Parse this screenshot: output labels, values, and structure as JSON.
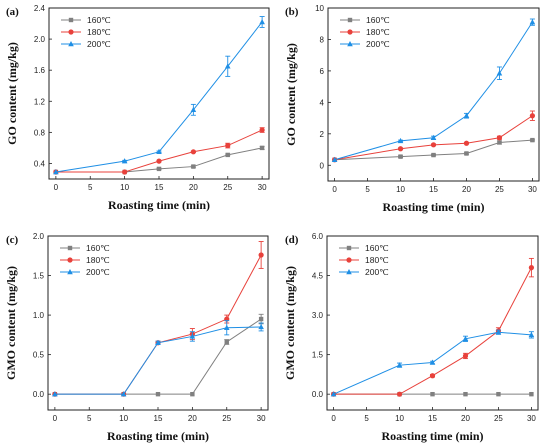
{
  "chart_data": [
    {
      "type": "line",
      "panel_label": "(a)",
      "xlabel": "Roasting time (min)",
      "ylabel": "GO content (mg/kg)",
      "x": [
        0,
        10,
        15,
        20,
        25,
        30
      ],
      "xticks": [
        0,
        5,
        10,
        15,
        20,
        25,
        30
      ],
      "xlim": [
        -1,
        31
      ],
      "ylim": [
        0.2,
        2.4
      ],
      "yticks": [
        "0.4",
        "0.8",
        "1.2",
        "1.6",
        "2.0",
        "2.4"
      ],
      "legend_position": "top-left",
      "series": [
        {
          "name": "160℃",
          "color": "#808080",
          "marker": "square",
          "values": [
            0.29,
            0.29,
            0.33,
            0.36,
            0.51,
            0.6
          ],
          "errors": [
            0,
            0,
            0.01,
            0.01,
            0.01,
            0.02
          ]
        },
        {
          "name": "180℃",
          "color": "#e8413b",
          "marker": "circle",
          "values": [
            0.29,
            0.29,
            0.43,
            0.55,
            0.63,
            0.83
          ],
          "errors": [
            0,
            0,
            0.01,
            0.01,
            0.03,
            0.03
          ]
        },
        {
          "name": "200℃",
          "color": "#1f8fe5",
          "marker": "triangle",
          "values": [
            0.29,
            0.43,
            0.55,
            1.09,
            1.65,
            2.22
          ],
          "errors": [
            0,
            0.01,
            0.01,
            0.07,
            0.13,
            0.07
          ]
        }
      ]
    },
    {
      "type": "line",
      "panel_label": "(b)",
      "xlabel": "Roasting time (min)",
      "ylabel": "GO content (mg/kg)",
      "x": [
        0,
        10,
        15,
        20,
        25,
        30
      ],
      "xticks": [
        0,
        5,
        10,
        15,
        20,
        25,
        30
      ],
      "xlim": [
        -1,
        31
      ],
      "ylim": [
        -1,
        10
      ],
      "yticks": [
        "0",
        "2",
        "4",
        "6",
        "8",
        "10"
      ],
      "legend_position": "top-left",
      "series": [
        {
          "name": "160℃",
          "color": "#808080",
          "marker": "square",
          "values": [
            0.35,
            0.55,
            0.65,
            0.75,
            1.45,
            1.6
          ],
          "errors": [
            0,
            0.05,
            0.05,
            0.05,
            0.1,
            0.05
          ]
        },
        {
          "name": "180℃",
          "color": "#e8413b",
          "marker": "circle",
          "values": [
            0.35,
            1.05,
            1.3,
            1.4,
            1.75,
            3.15
          ],
          "errors": [
            0,
            0.05,
            0.05,
            0.05,
            0.1,
            0.3
          ]
        },
        {
          "name": "200℃",
          "color": "#1f8fe5",
          "marker": "triangle",
          "values": [
            0.35,
            1.55,
            1.75,
            3.15,
            5.85,
            9.1
          ],
          "errors": [
            0,
            0.05,
            0.1,
            0.15,
            0.4,
            0.2
          ]
        }
      ]
    },
    {
      "type": "line",
      "panel_label": "(c)",
      "xlabel": "Roasting time (min)",
      "ylabel": "GMO content (mg/kg)",
      "x": [
        0,
        10,
        15,
        20,
        25,
        30
      ],
      "xticks": [
        0,
        5,
        10,
        15,
        20,
        25,
        30
      ],
      "xlim": [
        -1,
        31
      ],
      "ylim": [
        -0.2,
        2.0
      ],
      "yticks": [
        "0.0",
        "0.5",
        "1.0",
        "1.5",
        "2.0"
      ],
      "legend_position": "top-left",
      "series": [
        {
          "name": "160℃",
          "color": "#808080",
          "marker": "square",
          "values": [
            0,
            0,
            0,
            0,
            0.66,
            0.95
          ],
          "errors": [
            0,
            0,
            0,
            0,
            0.03,
            0.06
          ]
        },
        {
          "name": "180℃",
          "color": "#e8413b",
          "marker": "circle",
          "values": [
            0,
            0,
            0.65,
            0.76,
            0.95,
            1.76
          ],
          "errors": [
            0,
            0,
            0.02,
            0.07,
            0.05,
            0.17
          ]
        },
        {
          "name": "200℃",
          "color": "#1f8fe5",
          "marker": "triangle",
          "values": [
            0,
            0,
            0.65,
            0.73,
            0.84,
            0.85
          ],
          "errors": [
            0,
            0,
            0.02,
            0.06,
            0.09,
            0.05
          ]
        }
      ]
    },
    {
      "type": "line",
      "panel_label": "(d)",
      "xlabel": "Roasting time (min)",
      "ylabel": "GMO content (mg/kg)",
      "x": [
        0,
        10,
        15,
        20,
        25,
        30
      ],
      "xticks": [
        0,
        5,
        10,
        15,
        20,
        25,
        30
      ],
      "xlim": [
        -1,
        31
      ],
      "ylim": [
        -0.6,
        6.0
      ],
      "yticks": [
        "0.0",
        "1.5",
        "3.0",
        "4.5",
        "6.0"
      ],
      "legend_position": "top-left",
      "series": [
        {
          "name": "160℃",
          "color": "#808080",
          "marker": "square",
          "values": [
            0,
            0,
            0,
            0,
            0,
            0
          ],
          "errors": [
            0,
            0,
            0,
            0,
            0,
            0
          ]
        },
        {
          "name": "180℃",
          "color": "#e8413b",
          "marker": "circle",
          "values": [
            0,
            0,
            0.7,
            1.45,
            2.4,
            4.8
          ],
          "errors": [
            0,
            0,
            0.05,
            0.1,
            0.12,
            0.35
          ]
        },
        {
          "name": "200℃",
          "color": "#1f8fe5",
          "marker": "triangle",
          "values": [
            0,
            1.1,
            1.2,
            2.1,
            2.35,
            2.25
          ],
          "errors": [
            0,
            0.08,
            0.05,
            0.1,
            0.08,
            0.12
          ]
        }
      ]
    }
  ]
}
